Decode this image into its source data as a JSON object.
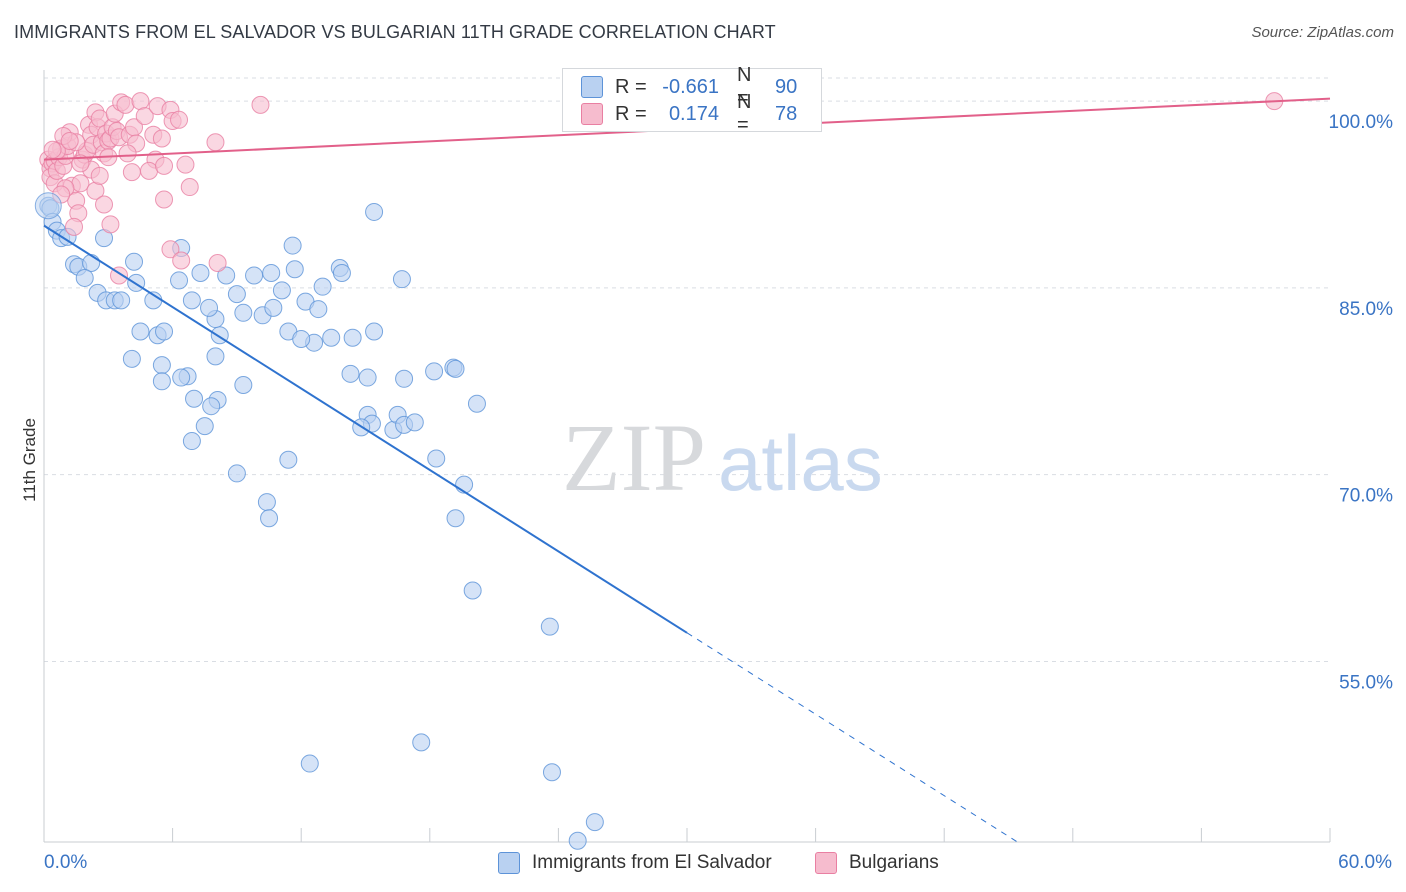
{
  "title": "IMMIGRANTS FROM EL SALVADOR VS BULGARIAN 11TH GRADE CORRELATION CHART",
  "source": "Source: ZipAtlas.com",
  "watermark": {
    "zip": "ZIP",
    "atlas": "atlas"
  },
  "colors": {
    "blue_fill": "#b9d1f1",
    "blue_stroke": "#5d93d8",
    "blue_line": "#2f73cf",
    "pink_fill": "#f6bcce",
    "pink_stroke": "#e97fa2",
    "pink_line": "#e2608a",
    "axis_text": "#3a74c4",
    "grid": "#d9dde3"
  },
  "legend": {
    "rows": [
      {
        "r_label": "R =",
        "r_value": "-0.661",
        "n_label": "N =",
        "n_value": "90",
        "color": "#b9d1f1",
        "stroke": "#5d93d8"
      },
      {
        "r_label": "R =",
        "r_value": "0.174",
        "n_label": "N =",
        "n_value": "78",
        "color": "#f6bcce",
        "stroke": "#e97fa2"
      }
    ],
    "series": [
      {
        "name": "Immigrants from El Salvador",
        "color": "#b9d1f1",
        "stroke": "#5d93d8"
      },
      {
        "name": "Bulgarians",
        "color": "#f6bcce",
        "stroke": "#e97fa2"
      }
    ]
  },
  "chart_data": {
    "type": "scatter",
    "title": "IMMIGRANTS FROM EL SALVADOR VS BULGARIAN 11TH GRADE CORRELATION CHART",
    "xlabel": "",
    "ylabel": "11th Grade",
    "xlim": [
      0,
      60
    ],
    "ylim": [
      40.5,
      102.5
    ],
    "x_tick_labels": [
      "0.0%",
      "60.0%"
    ],
    "y_ticks": [
      55,
      70,
      85,
      100
    ],
    "y_tick_labels": [
      "55.0%",
      "70.0%",
      "85.0%",
      "100.0%"
    ],
    "series": [
      {
        "name": "Immigrants from El Salvador",
        "r": -0.661,
        "n": 90,
        "trend": {
          "x0": 0.0,
          "y0": 90.0,
          "x1": 30.0,
          "y1": 57.3,
          "dash_to_x": 45.6,
          "dash_to_y": 40.3
        },
        "points": [
          [
            0.2,
            91.6
          ],
          [
            0.3,
            91.4
          ],
          [
            0.4,
            90.3
          ],
          [
            0.6,
            89.6
          ],
          [
            0.8,
            89.0
          ],
          [
            1.1,
            89.1
          ],
          [
            2.8,
            89.0
          ],
          [
            1.4,
            86.9
          ],
          [
            1.6,
            86.7
          ],
          [
            2.2,
            87.0
          ],
          [
            1.9,
            85.8
          ],
          [
            2.5,
            84.6
          ],
          [
            4.3,
            85.4
          ],
          [
            2.9,
            84.0
          ],
          [
            3.3,
            84.0
          ],
          [
            3.6,
            84.0
          ],
          [
            4.5,
            81.5
          ],
          [
            5.1,
            84.0
          ],
          [
            4.2,
            87.1
          ],
          [
            6.4,
            88.2
          ],
          [
            6.3,
            85.6
          ],
          [
            7.3,
            86.2
          ],
          [
            8.5,
            86.0
          ],
          [
            9.0,
            84.5
          ],
          [
            8.2,
            81.2
          ],
          [
            8.0,
            82.5
          ],
          [
            7.7,
            83.4
          ],
          [
            5.3,
            81.2
          ],
          [
            5.6,
            81.5
          ],
          [
            4.1,
            79.3
          ],
          [
            5.5,
            78.8
          ],
          [
            6.7,
            77.9
          ],
          [
            6.9,
            84.0
          ],
          [
            9.3,
            83.0
          ],
          [
            9.8,
            86.0
          ],
          [
            10.6,
            86.2
          ],
          [
            10.2,
            82.8
          ],
          [
            10.7,
            83.4
          ],
          [
            11.4,
            81.5
          ],
          [
            11.6,
            88.4
          ],
          [
            11.7,
            86.5
          ],
          [
            11.1,
            84.8
          ],
          [
            12.2,
            83.9
          ],
          [
            13.0,
            85.1
          ],
          [
            12.8,
            83.3
          ],
          [
            12.6,
            80.6
          ],
          [
            13.4,
            81.0
          ],
          [
            13.8,
            86.6
          ],
          [
            13.9,
            86.2
          ],
          [
            15.4,
            91.1
          ],
          [
            16.7,
            85.7
          ],
          [
            15.4,
            81.5
          ],
          [
            14.4,
            81.0
          ],
          [
            12.0,
            80.9
          ],
          [
            8.0,
            79.5
          ],
          [
            5.5,
            77.5
          ],
          [
            6.4,
            77.8
          ],
          [
            7.0,
            76.1
          ],
          [
            9.3,
            77.2
          ],
          [
            8.1,
            76.0
          ],
          [
            7.8,
            75.5
          ],
          [
            7.5,
            73.9
          ],
          [
            6.9,
            72.7
          ],
          [
            9.0,
            70.1
          ],
          [
            11.4,
            71.2
          ],
          [
            10.4,
            67.8
          ],
          [
            10.5,
            66.5
          ],
          [
            14.3,
            78.1
          ],
          [
            15.1,
            77.8
          ],
          [
            16.8,
            77.7
          ],
          [
            18.2,
            78.3
          ],
          [
            19.1,
            78.6
          ],
          [
            19.2,
            78.5
          ],
          [
            20.2,
            75.7
          ],
          [
            15.1,
            74.8
          ],
          [
            15.3,
            74.1
          ],
          [
            14.8,
            73.8
          ],
          [
            16.3,
            73.6
          ],
          [
            16.5,
            74.8
          ],
          [
            16.8,
            74.0
          ],
          [
            17.3,
            74.2
          ],
          [
            18.3,
            71.3
          ],
          [
            19.6,
            69.2
          ],
          [
            19.2,
            66.5
          ],
          [
            20.0,
            60.7
          ],
          [
            23.6,
            57.8
          ],
          [
            17.6,
            48.5
          ],
          [
            12.4,
            46.8
          ],
          [
            23.7,
            46.1
          ],
          [
            25.7,
            42.1
          ],
          [
            24.9,
            40.6
          ]
        ]
      },
      {
        "name": "Bulgarians",
        "r": 0.174,
        "n": 78,
        "trend": {
          "x0": 0.0,
          "y0": 95.3,
          "x1": 60.0,
          "y1": 100.2
        },
        "points": [
          [
            0.2,
            95.3
          ],
          [
            0.3,
            94.6
          ],
          [
            0.4,
            95.0
          ],
          [
            0.5,
            95.2
          ],
          [
            0.3,
            93.9
          ],
          [
            0.5,
            93.4
          ],
          [
            0.6,
            94.4
          ],
          [
            0.7,
            95.5
          ],
          [
            0.8,
            96.2
          ],
          [
            0.9,
            94.8
          ],
          [
            1.0,
            95.6
          ],
          [
            1.1,
            96.4
          ],
          [
            1.2,
            97.5
          ],
          [
            1.3,
            93.2
          ],
          [
            1.5,
            92.0
          ],
          [
            1.6,
            91.0
          ],
          [
            1.7,
            93.4
          ],
          [
            1.8,
            95.3
          ],
          [
            1.9,
            95.7
          ],
          [
            2.0,
            96.0
          ],
          [
            2.1,
            98.1
          ],
          [
            2.2,
            97.3
          ],
          [
            2.3,
            96.5
          ],
          [
            2.4,
            99.1
          ],
          [
            2.5,
            97.9
          ],
          [
            2.6,
            98.6
          ],
          [
            2.7,
            96.7
          ],
          [
            2.8,
            95.8
          ],
          [
            2.9,
            97.4
          ],
          [
            3.0,
            96.8
          ],
          [
            3.1,
            97.0
          ],
          [
            3.2,
            97.9
          ],
          [
            3.4,
            97.6
          ],
          [
            3.5,
            97.1
          ],
          [
            3.3,
            99.0
          ],
          [
            3.6,
            99.9
          ],
          [
            3.8,
            99.7
          ],
          [
            4.0,
            97.3
          ],
          [
            4.2,
            97.9
          ],
          [
            4.5,
            100.0
          ],
          [
            4.7,
            98.8
          ],
          [
            5.1,
            97.3
          ],
          [
            5.3,
            99.6
          ],
          [
            5.5,
            97.0
          ],
          [
            5.2,
            95.3
          ],
          [
            4.1,
            94.3
          ],
          [
            4.9,
            94.4
          ],
          [
            5.6,
            94.8
          ],
          [
            5.9,
            99.3
          ],
          [
            6.0,
            98.4
          ],
          [
            6.3,
            98.5
          ],
          [
            6.6,
            94.9
          ],
          [
            5.6,
            92.1
          ],
          [
            5.9,
            88.1
          ],
          [
            6.4,
            87.2
          ],
          [
            6.8,
            93.1
          ],
          [
            8.0,
            96.7
          ],
          [
            8.1,
            87.0
          ],
          [
            10.1,
            99.7
          ],
          [
            2.4,
            92.8
          ],
          [
            2.8,
            91.7
          ],
          [
            3.1,
            90.1
          ],
          [
            3.5,
            86.0
          ],
          [
            1.4,
            89.9
          ],
          [
            1.0,
            93.0
          ],
          [
            0.8,
            92.5
          ],
          [
            1.5,
            96.7
          ],
          [
            2.2,
            94.5
          ],
          [
            3.0,
            95.5
          ],
          [
            4.3,
            96.6
          ],
          [
            0.6,
            96.0
          ],
          [
            0.9,
            97.2
          ],
          [
            1.7,
            95.0
          ],
          [
            2.6,
            94.0
          ],
          [
            3.9,
            95.8
          ],
          [
            0.4,
            96.1
          ],
          [
            1.2,
            96.8
          ],
          [
            57.4,
            100.0
          ]
        ]
      }
    ]
  }
}
